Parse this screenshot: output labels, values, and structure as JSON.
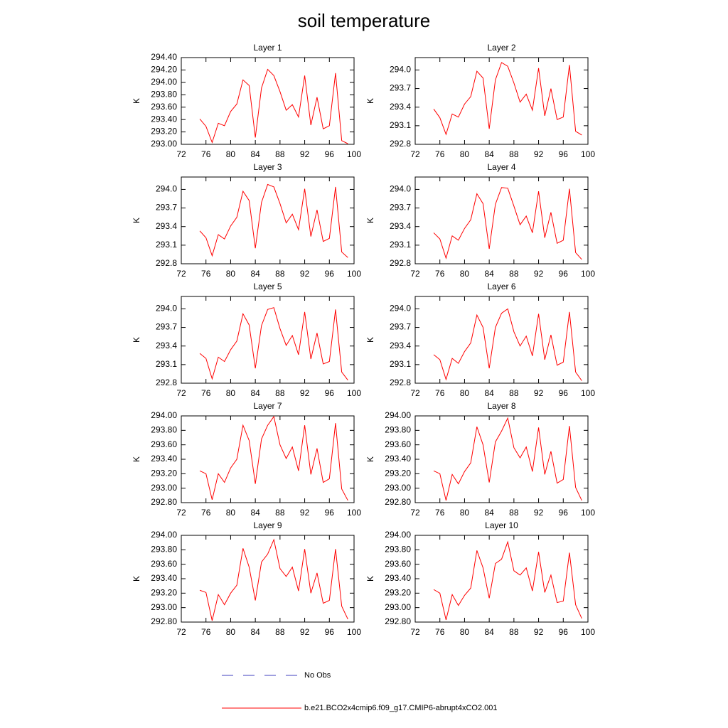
{
  "title": "soil temperature",
  "legend": [
    {
      "name": "No Obs",
      "color": "#3f3fbf",
      "dash": "dashed"
    },
    {
      "name": "b.e21.BCO2x4cmip6.f09_g17.CMIP6-abrupt4xCO2.001",
      "color": "#ff0000"
    }
  ],
  "chart_data": [
    {
      "type": "line",
      "title": "Layer 1",
      "ylabel": "K",
      "x": [
        75,
        76,
        77,
        78,
        79,
        80,
        81,
        82,
        83,
        84,
        85,
        86,
        87,
        88,
        89,
        90,
        91,
        92,
        93,
        94,
        95,
        96,
        97,
        98,
        99
      ],
      "xlim": [
        72,
        100
      ],
      "xticks": [
        72,
        76,
        80,
        84,
        88,
        92,
        96,
        100
      ],
      "ylim": [
        293.0,
        294.4
      ],
      "yticks": [
        {
          "value": 293.0,
          "label": "293.00"
        },
        {
          "value": 293.2,
          "label": "293.20"
        },
        {
          "value": 293.4,
          "label": "293.40"
        },
        {
          "value": 293.6,
          "label": "293.60"
        },
        {
          "value": 293.8,
          "label": "293.80"
        },
        {
          "value": 294.0,
          "label": "294.00"
        },
        {
          "value": 294.2,
          "label": "294.20"
        },
        {
          "value": 294.4,
          "label": "294.40"
        }
      ],
      "series": [
        {
          "color": "#ff0000",
          "values": [
            293.41,
            293.29,
            293.03,
            293.34,
            293.3,
            293.53,
            293.65,
            294.04,
            293.95,
            293.11,
            293.91,
            294.21,
            294.11,
            293.85,
            293.55,
            293.64,
            293.44,
            294.11,
            293.31,
            293.76,
            293.25,
            293.3,
            294.15,
            293.06,
            293.01
          ]
        }
      ]
    },
    {
      "type": "line",
      "title": "Layer 2",
      "ylabel": "K",
      "x": [
        75,
        76,
        77,
        78,
        79,
        80,
        81,
        82,
        83,
        84,
        85,
        86,
        87,
        88,
        89,
        90,
        91,
        92,
        93,
        94,
        95,
        96,
        97,
        98,
        99
      ],
      "xlim": [
        72,
        100
      ],
      "xticks": [
        72,
        76,
        80,
        84,
        88,
        92,
        96,
        100
      ],
      "ylim": [
        292.8,
        294.2
      ],
      "yticks": [
        292.8,
        293.1,
        293.4,
        293.7,
        {
          "value": 294.0,
          "label": "294.0"
        }
      ],
      "series": [
        {
          "color": "#ff0000",
          "values": [
            293.37,
            293.23,
            292.96,
            293.29,
            293.24,
            293.45,
            293.57,
            293.98,
            293.87,
            293.05,
            293.84,
            294.12,
            294.06,
            293.79,
            293.48,
            293.61,
            293.35,
            294.03,
            293.26,
            293.7,
            293.2,
            293.24,
            294.08,
            293.01,
            292.95
          ]
        }
      ]
    },
    {
      "type": "line",
      "title": "Layer 3",
      "ylabel": "K",
      "x": [
        75,
        76,
        77,
        78,
        79,
        80,
        81,
        82,
        83,
        84,
        85,
        86,
        87,
        88,
        89,
        90,
        91,
        92,
        93,
        94,
        95,
        96,
        97,
        98,
        99
      ],
      "xlim": [
        72,
        100
      ],
      "xticks": [
        72,
        76,
        80,
        84,
        88,
        92,
        96,
        100
      ],
      "ylim": [
        292.8,
        294.2
      ],
      "yticks": [
        292.8,
        293.1,
        293.4,
        293.7,
        {
          "value": 294.0,
          "label": "294.0"
        }
      ],
      "series": [
        {
          "color": "#ff0000",
          "values": [
            293.33,
            293.22,
            292.93,
            293.27,
            293.2,
            293.41,
            293.55,
            293.97,
            293.82,
            293.05,
            293.79,
            294.08,
            294.04,
            293.77,
            293.46,
            293.6,
            293.35,
            294.01,
            293.24,
            293.67,
            293.16,
            293.21,
            294.04,
            292.99,
            292.9
          ]
        }
      ]
    },
    {
      "type": "line",
      "title": "Layer 4",
      "ylabel": "K",
      "x": [
        75,
        76,
        77,
        78,
        79,
        80,
        81,
        82,
        83,
        84,
        85,
        86,
        87,
        88,
        89,
        90,
        91,
        92,
        93,
        94,
        95,
        96,
        97,
        98,
        99
      ],
      "xlim": [
        72,
        100
      ],
      "xticks": [
        72,
        76,
        80,
        84,
        88,
        92,
        96,
        100
      ],
      "ylim": [
        292.8,
        294.2
      ],
      "yticks": [
        292.8,
        293.1,
        293.4,
        293.7,
        {
          "value": 294.0,
          "label": "294.0"
        }
      ],
      "series": [
        {
          "color": "#ff0000",
          "values": [
            293.3,
            293.2,
            292.89,
            293.25,
            293.18,
            293.37,
            293.51,
            293.93,
            293.77,
            293.04,
            293.76,
            294.03,
            294.02,
            293.73,
            293.43,
            293.57,
            293.3,
            293.97,
            293.22,
            293.63,
            293.13,
            293.18,
            294.01,
            292.98,
            292.87
          ]
        }
      ]
    },
    {
      "type": "line",
      "title": "Layer 5",
      "ylabel": "K",
      "x": [
        75,
        76,
        77,
        78,
        79,
        80,
        81,
        82,
        83,
        84,
        85,
        86,
        87,
        88,
        89,
        90,
        91,
        92,
        93,
        94,
        95,
        96,
        97,
        98,
        99
      ],
      "xlim": [
        72,
        100
      ],
      "xticks": [
        72,
        76,
        80,
        84,
        88,
        92,
        96,
        100
      ],
      "ylim": [
        292.8,
        294.2
      ],
      "yticks": [
        292.8,
        293.1,
        293.4,
        293.7,
        {
          "value": 294.0,
          "label": "294.0"
        }
      ],
      "series": [
        {
          "color": "#ff0000",
          "values": [
            293.28,
            293.2,
            292.87,
            293.22,
            293.15,
            293.34,
            293.48,
            293.92,
            293.74,
            293.04,
            293.73,
            293.99,
            294.02,
            293.68,
            293.41,
            293.57,
            293.26,
            293.95,
            293.19,
            293.61,
            293.11,
            293.15,
            293.99,
            292.98,
            292.85
          ]
        }
      ]
    },
    {
      "type": "line",
      "title": "Layer 6",
      "ylabel": "K",
      "x": [
        75,
        76,
        77,
        78,
        79,
        80,
        81,
        82,
        83,
        84,
        85,
        86,
        87,
        88,
        89,
        90,
        91,
        92,
        93,
        94,
        95,
        96,
        97,
        98,
        99
      ],
      "xlim": [
        72,
        100
      ],
      "xticks": [
        72,
        76,
        80,
        84,
        88,
        92,
        96,
        100
      ],
      "ylim": [
        292.8,
        294.2
      ],
      "yticks": [
        292.8,
        293.1,
        293.4,
        293.7,
        {
          "value": 294.0,
          "label": "294.0"
        }
      ],
      "series": [
        {
          "color": "#ff0000",
          "values": [
            293.26,
            293.18,
            292.86,
            293.2,
            293.12,
            293.31,
            293.45,
            293.9,
            293.7,
            293.04,
            293.7,
            293.93,
            294.0,
            293.63,
            293.4,
            293.56,
            293.24,
            293.92,
            293.18,
            293.58,
            293.09,
            293.14,
            293.95,
            292.98,
            292.84
          ]
        }
      ]
    },
    {
      "type": "line",
      "title": "Layer 7",
      "ylabel": "K",
      "x": [
        75,
        76,
        77,
        78,
        79,
        80,
        81,
        82,
        83,
        84,
        85,
        86,
        87,
        88,
        89,
        90,
        91,
        92,
        93,
        94,
        95,
        96,
        97,
        98,
        99
      ],
      "xlim": [
        72,
        100
      ],
      "xticks": [
        72,
        76,
        80,
        84,
        88,
        92,
        96,
        100
      ],
      "ylim": [
        292.8,
        294.0
      ],
      "yticks": [
        {
          "value": 292.8,
          "label": "292.80"
        },
        {
          "value": 293.0,
          "label": "293.00"
        },
        {
          "value": 293.2,
          "label": "293.20"
        },
        {
          "value": 293.4,
          "label": "293.40"
        },
        {
          "value": 293.6,
          "label": "293.60"
        },
        {
          "value": 293.8,
          "label": "293.80"
        },
        {
          "value": 294.0,
          "label": "294.00"
        }
      ],
      "series": [
        {
          "color": "#ff0000",
          "values": [
            293.24,
            293.2,
            292.84,
            293.2,
            293.08,
            293.28,
            293.4,
            293.87,
            293.66,
            293.06,
            293.68,
            293.87,
            293.99,
            293.6,
            293.41,
            293.57,
            293.24,
            293.87,
            293.19,
            293.55,
            293.08,
            293.13,
            293.9,
            292.99,
            292.83
          ]
        }
      ]
    },
    {
      "type": "line",
      "title": "Layer 8",
      "ylabel": "K",
      "x": [
        75,
        76,
        77,
        78,
        79,
        80,
        81,
        82,
        83,
        84,
        85,
        86,
        87,
        88,
        89,
        90,
        91,
        92,
        93,
        94,
        95,
        96,
        97,
        98,
        99
      ],
      "xlim": [
        72,
        100
      ],
      "xticks": [
        72,
        76,
        80,
        84,
        88,
        92,
        96,
        100
      ],
      "ylim": [
        292.8,
        294.0
      ],
      "yticks": [
        {
          "value": 292.8,
          "label": "292.80"
        },
        {
          "value": 293.0,
          "label": "293.00"
        },
        {
          "value": 293.2,
          "label": "293.20"
        },
        {
          "value": 293.4,
          "label": "293.40"
        },
        {
          "value": 293.6,
          "label": "293.60"
        },
        {
          "value": 293.8,
          "label": "293.80"
        },
        {
          "value": 294.0,
          "label": "294.00"
        }
      ],
      "series": [
        {
          "color": "#ff0000",
          "values": [
            293.24,
            293.2,
            292.83,
            293.19,
            293.06,
            293.23,
            293.35,
            293.85,
            293.6,
            293.08,
            293.64,
            293.79,
            293.97,
            293.56,
            293.42,
            293.57,
            293.23,
            293.84,
            293.19,
            293.51,
            293.07,
            293.12,
            293.86,
            293.01,
            292.83
          ]
        }
      ]
    },
    {
      "type": "line",
      "title": "Layer 9",
      "ylabel": "K",
      "x": [
        75,
        76,
        77,
        78,
        79,
        80,
        81,
        82,
        83,
        84,
        85,
        86,
        87,
        88,
        89,
        90,
        91,
        92,
        93,
        94,
        95,
        96,
        97,
        98,
        99
      ],
      "xlim": [
        72,
        100
      ],
      "xticks": [
        72,
        76,
        80,
        84,
        88,
        92,
        96,
        100
      ],
      "ylim": [
        292.8,
        294.0
      ],
      "yticks": [
        {
          "value": 292.8,
          "label": "292.80"
        },
        {
          "value": 293.0,
          "label": "293.00"
        },
        {
          "value": 293.2,
          "label": "293.20"
        },
        {
          "value": 293.4,
          "label": "293.40"
        },
        {
          "value": 293.6,
          "label": "293.60"
        },
        {
          "value": 293.8,
          "label": "293.80"
        },
        {
          "value": 294.0,
          "label": "294.00"
        }
      ],
      "series": [
        {
          "color": "#ff0000",
          "values": [
            293.24,
            293.21,
            292.82,
            293.18,
            293.04,
            293.2,
            293.31,
            293.82,
            293.56,
            293.1,
            293.63,
            293.74,
            293.94,
            293.54,
            293.43,
            293.56,
            293.23,
            293.81,
            293.2,
            293.48,
            293.06,
            293.1,
            293.81,
            293.02,
            292.84
          ]
        }
      ]
    },
    {
      "type": "line",
      "title": "Layer 10",
      "ylabel": "K",
      "x": [
        75,
        76,
        77,
        78,
        79,
        80,
        81,
        82,
        83,
        84,
        85,
        86,
        87,
        88,
        89,
        90,
        91,
        92,
        93,
        94,
        95,
        96,
        97,
        98,
        99
      ],
      "xlim": [
        72,
        100
      ],
      "xticks": [
        72,
        76,
        80,
        84,
        88,
        92,
        96,
        100
      ],
      "ylim": [
        292.8,
        294.0
      ],
      "yticks": [
        {
          "value": 292.8,
          "label": "292.80"
        },
        {
          "value": 293.0,
          "label": "293.00"
        },
        {
          "value": 293.2,
          "label": "293.20"
        },
        {
          "value": 293.4,
          "label": "293.40"
        },
        {
          "value": 293.6,
          "label": "293.60"
        },
        {
          "value": 293.8,
          "label": "293.80"
        },
        {
          "value": 294.0,
          "label": "294.00"
        }
      ],
      "series": [
        {
          "color": "#ff0000",
          "values": [
            293.25,
            293.2,
            292.83,
            293.18,
            293.03,
            293.17,
            293.27,
            293.79,
            293.55,
            293.13,
            293.61,
            293.67,
            293.91,
            293.51,
            293.45,
            293.55,
            293.23,
            293.77,
            293.21,
            293.45,
            293.07,
            293.09,
            293.76,
            293.04,
            292.85
          ]
        }
      ]
    }
  ]
}
